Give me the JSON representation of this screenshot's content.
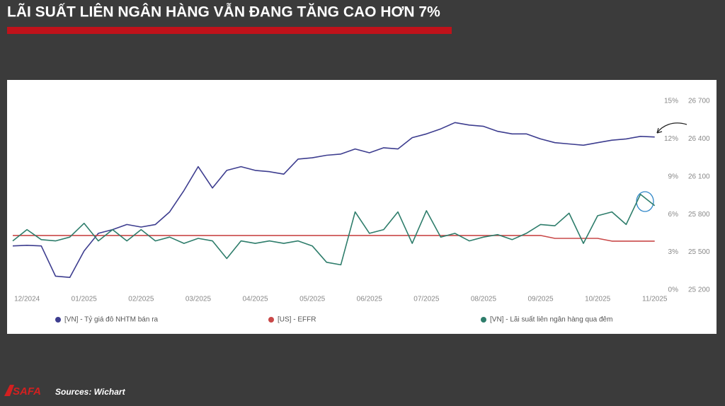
{
  "header": {
    "title": "LÃI SUẤT LIÊN NGÂN HÀNG VẪN ĐANG TĂNG CAO HƠN 7%"
  },
  "chart_data": {
    "type": "line",
    "categories": [
      null,
      "12/2024",
      null,
      null,
      null,
      "01/2025",
      null,
      null,
      null,
      "02/2025",
      null,
      null,
      null,
      "03/2025",
      null,
      null,
      null,
      "04/2025",
      null,
      null,
      null,
      "05/2025",
      null,
      null,
      null,
      "06/2025",
      null,
      null,
      null,
      "07/2025",
      null,
      null,
      null,
      "08/2025",
      null,
      null,
      null,
      "09/2025",
      null,
      null,
      null,
      "10/2025",
      null,
      null,
      null,
      "11/2025"
    ],
    "ylim": [
      0,
      15
    ],
    "yticks": [
      {
        "value": 0,
        "label": "0%"
      },
      {
        "value": 3,
        "label": "3%"
      },
      {
        "value": 6,
        "label": "6%"
      },
      {
        "value": 9,
        "label": "9%"
      },
      {
        "value": 12,
        "label": "12%"
      },
      {
        "value": 15,
        "label": "15%"
      }
    ],
    "y2lim": [
      25200,
      26700
    ],
    "y2ticks": [
      {
        "value": 25200,
        "label": "25 200"
      },
      {
        "value": 25500,
        "label": "25 500"
      },
      {
        "value": 25800,
        "label": "25 800"
      },
      {
        "value": 26100,
        "label": "26 100"
      },
      {
        "value": 26400,
        "label": "26 400"
      },
      {
        "value": 26700,
        "label": "26 700"
      }
    ],
    "series": [
      {
        "name": "[VN] - Tỷ giá đô NHTM bán ra",
        "color": "#3d3d8f",
        "axis": "y2",
        "values": [
          25550,
          25555,
          25550,
          25310,
          25300,
          25510,
          25650,
          25680,
          25720,
          25700,
          25720,
          25820,
          25990,
          26180,
          26010,
          26150,
          26180,
          26150,
          26140,
          26120,
          26240,
          26250,
          26270,
          26280,
          26320,
          26290,
          26330,
          26320,
          26410,
          26440,
          26480,
          26530,
          26510,
          26500,
          26460,
          26440,
          26440,
          26400,
          26370,
          26360,
          26350,
          26370,
          26390,
          26400,
          26420,
          26415
        ]
      },
      {
        "name": "[US] - EFFR",
        "color": "#c94848",
        "values": [
          4.33,
          4.33,
          4.33,
          4.33,
          4.33,
          4.33,
          4.33,
          4.33,
          4.33,
          4.33,
          4.33,
          4.33,
          4.33,
          4.33,
          4.33,
          4.33,
          4.33,
          4.33,
          4.33,
          4.33,
          4.33,
          4.33,
          4.33,
          4.33,
          4.33,
          4.33,
          4.33,
          4.33,
          4.33,
          4.33,
          4.33,
          4.33,
          4.33,
          4.33,
          4.33,
          4.33,
          4.33,
          4.33,
          4.1,
          4.1,
          4.1,
          4.1,
          3.88,
          3.88,
          3.88,
          3.88
        ]
      },
      {
        "name": "[VN] - Lãi suất liên ngân hàng qua đêm",
        "color": "#2e7d6b",
        "values": [
          3.9,
          4.8,
          4.0,
          3.9,
          4.2,
          5.3,
          3.9,
          4.8,
          3.9,
          4.8,
          3.9,
          4.2,
          3.7,
          4.1,
          3.9,
          2.5,
          3.9,
          3.7,
          3.9,
          3.7,
          3.9,
          3.5,
          2.2,
          2.0,
          6.2,
          4.5,
          4.8,
          6.2,
          3.7,
          6.3,
          4.2,
          4.5,
          3.9,
          4.2,
          4.4,
          4.0,
          4.5,
          5.2,
          5.1,
          6.1,
          3.7,
          5.9,
          6.2,
          5.2,
          7.6,
          6.7
        ]
      }
    ]
  },
  "footer": {
    "logo": "SAFA",
    "source": "Sources: Wichart"
  }
}
